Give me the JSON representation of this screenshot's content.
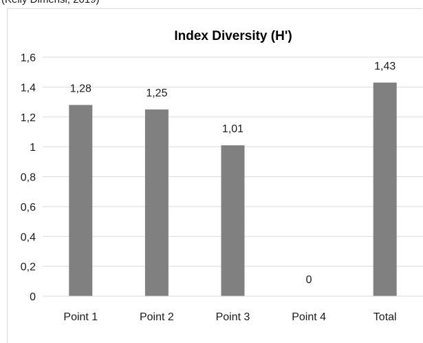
{
  "caption_fragment": "(Kelly Dimensi, 2019)",
  "chart_data": {
    "type": "bar",
    "title": "Index Diversity (H')",
    "xlabel": "",
    "ylabel": "",
    "categories": [
      "Point 1",
      "Point 2",
      "Point 3",
      "Point 4",
      "Total"
    ],
    "values": [
      1.28,
      1.25,
      1.01,
      0,
      1.43
    ],
    "data_labels": [
      "1,28",
      "1,25",
      "1,01",
      "0",
      "1,43"
    ],
    "ylim": [
      0,
      1.6
    ],
    "yticks": [
      0,
      0.2,
      0.4,
      0.6,
      0.8,
      1,
      1.2,
      1.4,
      1.6
    ],
    "ytick_labels": [
      "0",
      "0,2",
      "0,4",
      "0,6",
      "0,8",
      "1",
      "1,2",
      "1,4",
      "1,6"
    ],
    "grid": true,
    "legend": "none",
    "bar_color": "#808080",
    "grid_color": "#d9d9d9"
  }
}
